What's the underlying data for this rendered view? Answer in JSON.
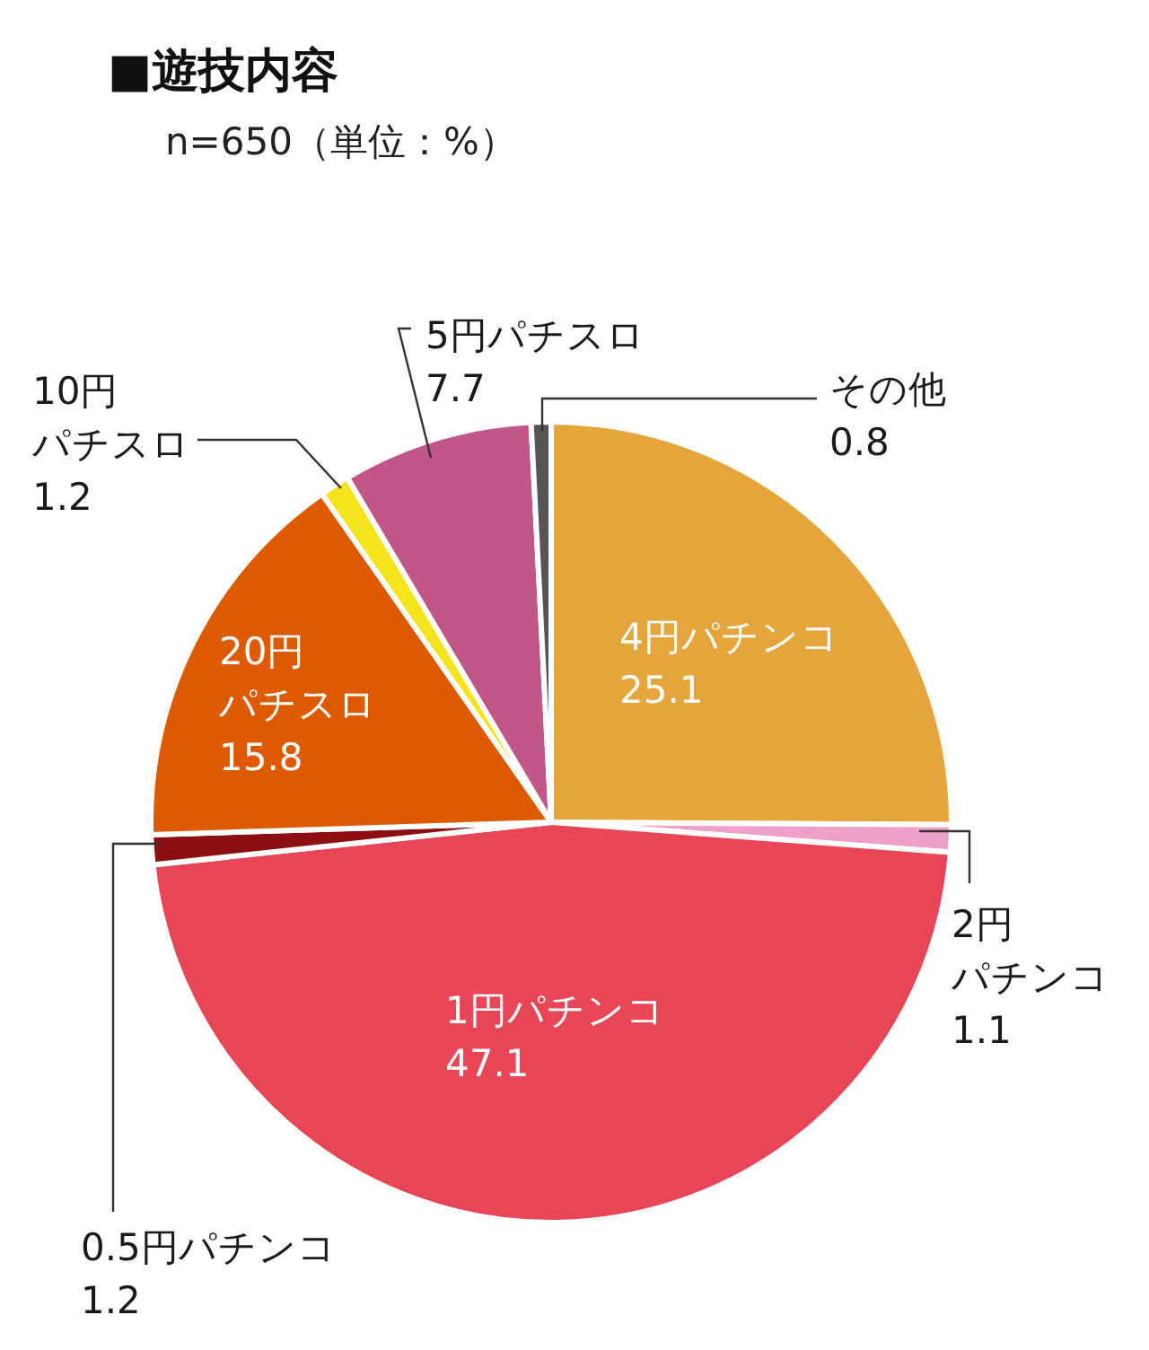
{
  "chart_data": {
    "type": "pie",
    "title": "■遊技内容",
    "subtitle": "n=650（単位：%）",
    "categories": [
      "4円パチンコ",
      "2円パチンコ",
      "1円パチンコ",
      "0.5円パチンコ",
      "20円パチスロ",
      "10円パチスロ",
      "5円パチスロ",
      "その他"
    ],
    "values": [
      25.1,
      1.1,
      47.1,
      1.2,
      15.8,
      1.2,
      7.7,
      0.8
    ],
    "colors": [
      "#e6a53b",
      "#eea0c8",
      "#e84556",
      "#8c0f12",
      "#dd5a00",
      "#f4e41c",
      "#c05788",
      "#555555"
    ],
    "data_labels": true
  }
}
